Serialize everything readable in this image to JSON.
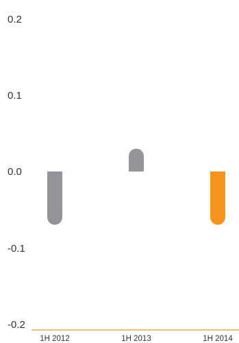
{
  "chart_data": {
    "type": "bar",
    "categories": [
      "1H 2012",
      "1H 2013",
      "1H 2014"
    ],
    "values": [
      -0.07,
      0.03,
      -0.07
    ],
    "bar_colors": [
      "#939598",
      "#939598",
      "#f7941d"
    ],
    "axis_color": "#f7941d",
    "ylim": [
      -0.2,
      0.2
    ],
    "yticks": [
      "0.2",
      "0.1",
      "0.0",
      "-0.1",
      "-0.2"
    ],
    "grid": false,
    "title": "",
    "xlabel": "",
    "ylabel": ""
  }
}
